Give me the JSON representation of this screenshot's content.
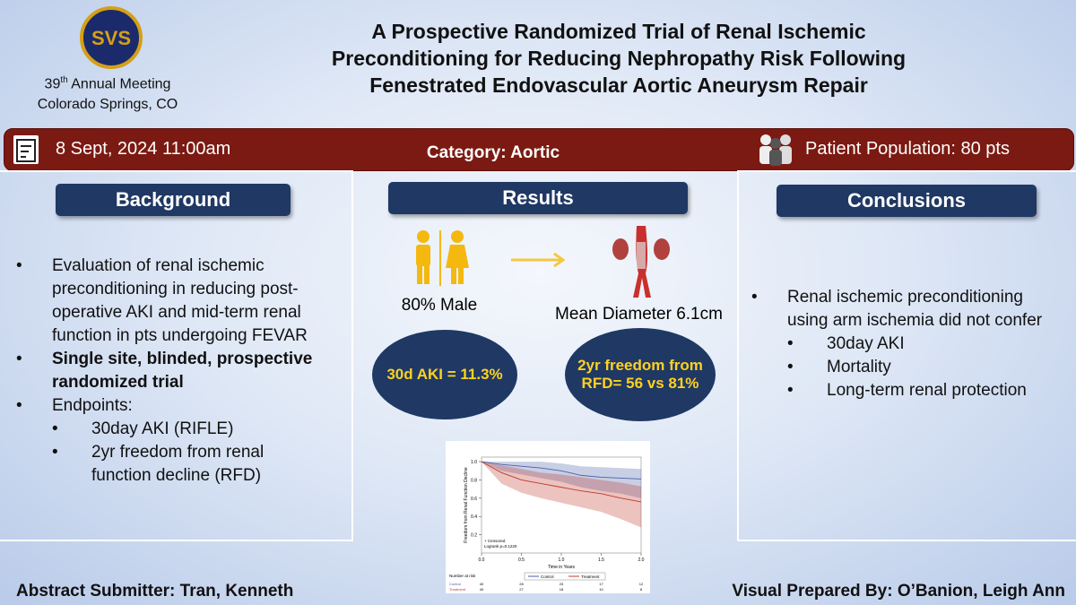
{
  "header": {
    "logo": "SVS",
    "meeting_number": "39",
    "meeting_ordinal": "th",
    "meeting_name": "Annual Meeting",
    "location": "Colorado Springs, CO",
    "title_lines": [
      "A Prospective Randomized Trial of Renal Ischemic",
      "Preconditioning for Reducing Nephropathy Risk Following",
      "Fenestrated Endovascular Aortic Aneurysm Repair"
    ]
  },
  "info_bar": {
    "date": "8 Sept, 2024 11:00am",
    "category": "Category: Aortic",
    "population": "Patient Population: 80 pts"
  },
  "background": {
    "heading": "Background",
    "items": [
      {
        "text": "Evaluation of renal ischemic preconditioning in reducing post-operative AKI and mid-term renal function in pts undergoing FEVAR",
        "bold": false,
        "sub": []
      },
      {
        "text": "Single site, blinded, prospective randomized trial",
        "bold": true,
        "sub": []
      },
      {
        "text": "Endpoints:",
        "bold": false,
        "sub": [
          "30day AKI (RIFLE)",
          "2yr freedom from renal function decline (RFD)"
        ]
      }
    ]
  },
  "results": {
    "heading": "Results",
    "male": "80% Male",
    "diameter": "Mean Diameter 6.1cm",
    "oval_left": "30d AKI = 11.3%",
    "oval_right": "2yr freedom from RFD= 56 vs 81%",
    "km_plot": {
      "ylabel": "Freedom from Renal Function Decline",
      "xlabel": "Time in Years",
      "censored": "+ Censored",
      "logrank": "Logrank p=0.1220",
      "risk_label": "Number at risk",
      "xlim": [
        0,
        2
      ],
      "ylim": [
        0,
        1.05
      ],
      "xticks": [
        {
          "value": 0,
          "label": "0.0"
        },
        {
          "value": 0.5,
          "label": "0.5"
        },
        {
          "value": 1,
          "label": "1.0"
        },
        {
          "value": 1.5,
          "label": "1.5"
        },
        {
          "value": 2,
          "label": "2.0"
        }
      ],
      "yticks": [
        0.2,
        0.4,
        0.6,
        0.8,
        {
          "value": 1,
          "label": "1.0"
        }
      ],
      "x": [
        0,
        0.25,
        0.5,
        0.75,
        1,
        1.25,
        1.5,
        1.75,
        2
      ],
      "series": [
        {
          "name": "Control",
          "color": "#4a5fa8",
          "values": [
            1,
            0.97,
            0.95,
            0.93,
            0.9,
            0.85,
            0.83,
            0.82,
            0.81
          ],
          "lower": [
            1,
            0.9,
            0.86,
            0.82,
            0.78,
            0.72,
            0.68,
            0.65,
            0.6
          ],
          "upper": [
            1,
            1,
            1,
            1,
            0.98,
            0.95,
            0.94,
            0.93,
            0.92
          ],
          "risk": [
            40,
            28,
            23,
            17,
            12
          ]
        },
        {
          "name": "Treatment",
          "color": "#c0392b",
          "values": [
            1,
            0.88,
            0.8,
            0.76,
            0.72,
            0.68,
            0.65,
            0.6,
            0.56
          ],
          "lower": [
            1,
            0.76,
            0.66,
            0.6,
            0.55,
            0.5,
            0.45,
            0.37,
            0.28
          ],
          "upper": [
            1,
            0.96,
            0.92,
            0.88,
            0.86,
            0.83,
            0.8,
            0.77,
            0.73
          ],
          "risk": [
            40,
            27,
            18,
            10,
            8
          ]
        }
      ]
    }
  },
  "conclusions": {
    "heading": "Conclusions",
    "items": [
      {
        "text": "Renal ischemic preconditioning using arm ischemia did not confer",
        "bold": false,
        "sub": [
          "30day AKI",
          "Mortality",
          "Long-term renal protection"
        ]
      }
    ]
  },
  "footer": {
    "submitter": "Abstract Submitter: Tran, Kenneth",
    "prepared_by": "Visual Prepared By: O’Banion, Leigh Ann"
  }
}
